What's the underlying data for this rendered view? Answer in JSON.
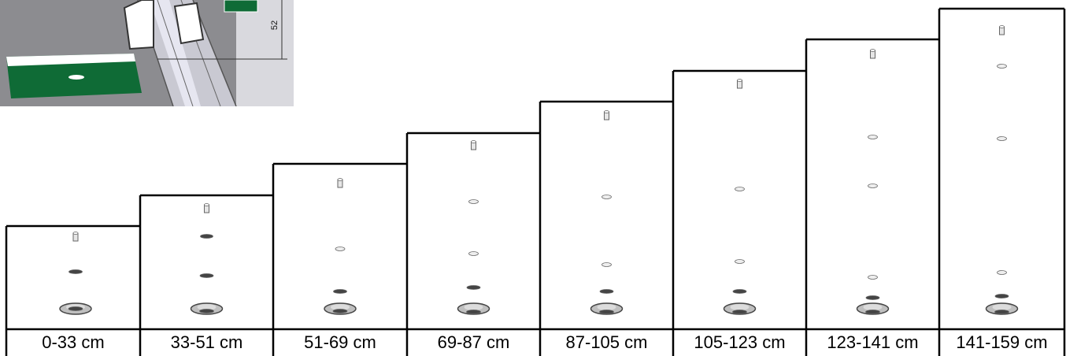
{
  "inset": {
    "dimension_value": "52"
  },
  "columns": [
    {
      "range_label": "0-33 cm",
      "segments": [
        "black",
        "black"
      ]
    },
    {
      "range_label": "33-51 cm",
      "segments": [
        "black",
        "black",
        "black"
      ]
    },
    {
      "range_label": "51-69 cm",
      "segments": [
        "black",
        "black",
        "silver"
      ]
    },
    {
      "range_label": "69-87 cm",
      "segments": [
        "black",
        "black",
        "silver",
        "silver"
      ]
    },
    {
      "range_label": "87-105 cm",
      "segments": [
        "black",
        "black",
        "silver",
        "silver"
      ]
    },
    {
      "range_label": "105-123 cm",
      "segments": [
        "black",
        "black",
        "silver",
        "silver"
      ]
    },
    {
      "range_label": "123-141 cm",
      "segments": [
        "black",
        "black",
        "silver",
        "silver",
        "silver"
      ]
    },
    {
      "range_label": "141-159 cm",
      "segments": [
        "black",
        "black",
        "silver",
        "silver",
        "silver",
        "silver"
      ]
    }
  ],
  "colors": {
    "pole_black": "#1e1e1e",
    "pole_silver": "#d6d6d8",
    "base_plate": "#bfbfbf",
    "panel_green": "#0f6b36",
    "inset_bg": "#8a8a8e"
  }
}
